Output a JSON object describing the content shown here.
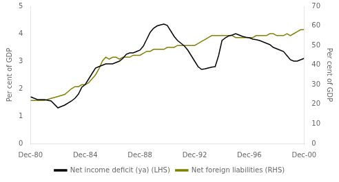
{
  "chart_data": {
    "type": "line",
    "ylabel": "Per cent of GDP",
    "y2label": "Per cent of GDP",
    "x": [
      1980.0,
      1980.5,
      1981.0,
      1981.5,
      1982.0,
      1982.5,
      1983.0,
      1983.25,
      1983.5,
      1983.75,
      1984.0,
      1984.25,
      1984.5,
      1984.75,
      1985.0,
      1985.25,
      1985.5,
      1985.75,
      1986.0,
      1986.25,
      1986.5,
      1986.75,
      1987.0,
      1987.25,
      1987.5,
      1987.75,
      1988.0,
      1988.25,
      1988.5,
      1988.75,
      1989.0,
      1989.25,
      1989.5,
      1989.75,
      1990.0,
      1990.25,
      1990.5,
      1990.75,
      1991.0,
      1991.25,
      1991.5,
      1991.75,
      1992.0,
      1992.25,
      1992.5,
      1992.75,
      1993.0,
      1993.25,
      1993.5,
      1993.75,
      1994.0,
      1994.25,
      1994.5,
      1994.75,
      1995.0,
      1995.25,
      1995.5,
      1995.75,
      1996.0,
      1996.25,
      1996.5,
      1996.75,
      1997.0,
      1997.25,
      1997.5,
      1997.75,
      1998.0,
      1998.25,
      1998.5,
      1998.75,
      1999.0,
      1999.25,
      1999.5,
      1999.75,
      2000.0
    ],
    "series": [
      {
        "name": "Net income deficit (ya) (LHS)",
        "color": "#000000",
        "axis": "y",
        "values": [
          1.7,
          1.6,
          1.6,
          1.55,
          1.3,
          1.4,
          1.55,
          1.65,
          1.8,
          2.05,
          2.15,
          2.35,
          2.55,
          2.75,
          2.8,
          2.85,
          2.9,
          2.9,
          2.9,
          2.95,
          3.0,
          3.1,
          3.25,
          3.3,
          3.3,
          3.35,
          3.4,
          3.55,
          3.8,
          4.05,
          4.2,
          4.28,
          4.32,
          4.35,
          4.3,
          4.1,
          3.9,
          3.75,
          3.65,
          3.55,
          3.4,
          3.2,
          3.0,
          2.8,
          2.7,
          2.72,
          2.75,
          2.78,
          2.8,
          3.2,
          3.75,
          3.85,
          3.92,
          3.95,
          4.0,
          3.95,
          3.9,
          3.87,
          3.85,
          3.8,
          3.78,
          3.75,
          3.7,
          3.65,
          3.6,
          3.5,
          3.45,
          3.4,
          3.35,
          3.2,
          3.05,
          3.0,
          3.0,
          3.05,
          3.1
        ]
      },
      {
        "name": "Net foreign liabilities (RHS)",
        "color": "#808000",
        "axis": "y2",
        "values": [
          22,
          22,
          22,
          23,
          24,
          25,
          28,
          29,
          29,
          30,
          30,
          31,
          33,
          35,
          38,
          42,
          44,
          43,
          44,
          44,
          43,
          44,
          44,
          44,
          45,
          45,
          45,
          46,
          47,
          47,
          48,
          48,
          48,
          48,
          49,
          49,
          49,
          50,
          50,
          50,
          50,
          50,
          50,
          51,
          52,
          53,
          54,
          55,
          55,
          55,
          55,
          55,
          55,
          55,
          54,
          54,
          54,
          54,
          54,
          54,
          55,
          55,
          55,
          55,
          56,
          56,
          55,
          55,
          55,
          56,
          55,
          56,
          57,
          58,
          58
        ]
      }
    ],
    "xlim": [
      1980,
      2000
    ],
    "xticks": [
      {
        "value": 1980,
        "label": "Dec-80"
      },
      {
        "value": 1984,
        "label": "Dec-84"
      },
      {
        "value": 1988,
        "label": "Dec-88"
      },
      {
        "value": 1992,
        "label": "Dec-92"
      },
      {
        "value": 1996,
        "label": "Dec-96"
      },
      {
        "value": 2000,
        "label": "Dec-00"
      }
    ],
    "ylim": [
      0,
      5
    ],
    "yticks": [
      0,
      1,
      2,
      3,
      4,
      5
    ],
    "y2lim": [
      0,
      70
    ],
    "y2ticks": [
      0,
      10,
      20,
      30,
      40,
      50,
      60,
      70
    ],
    "grid": false,
    "legend": "bottom"
  }
}
